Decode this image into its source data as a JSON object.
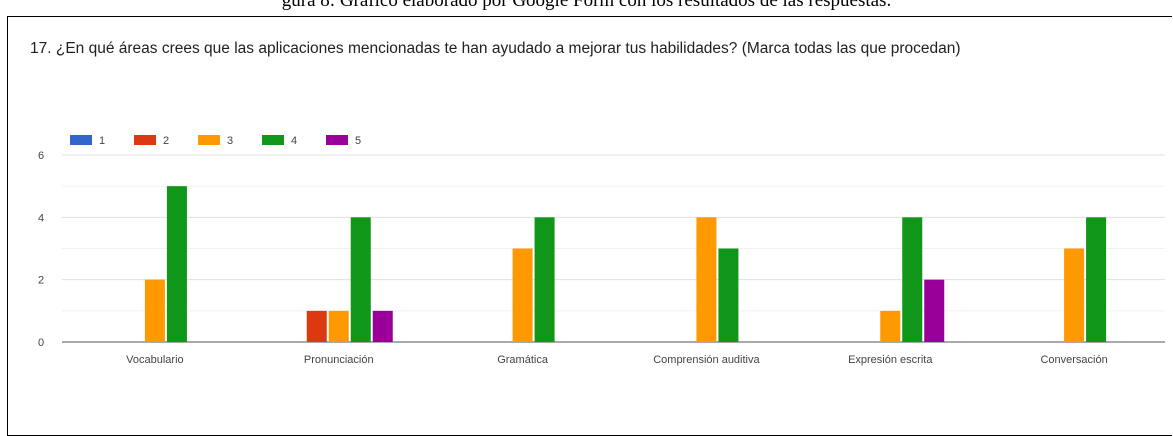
{
  "caption": {
    "prefix": "gura 8: Gráfico elaborado por Google Form con los resultados de las respuestas."
  },
  "question": "17. ¿En qué áreas crees que las aplicaciones mencionadas te han ayudado a mejorar tus habilidades? (Marca todas las que procedan)",
  "chart_data": {
    "type": "bar",
    "title": "",
    "xlabel": "",
    "ylabel": "",
    "ylim": [
      0,
      6
    ],
    "yticks": [
      0,
      2,
      4,
      6
    ],
    "grid": true,
    "legend_position": "top-left",
    "categories": [
      "Vocabulario",
      "Pronunciación",
      "Gramática",
      "Comprensión auditiva",
      "Expresión escrita",
      "Conversación"
    ],
    "series": [
      {
        "name": "1",
        "color": "#3366cc",
        "values": [
          0,
          0,
          0,
          0,
          0,
          0
        ]
      },
      {
        "name": "2",
        "color": "#dc3912",
        "values": [
          0,
          1,
          0,
          0,
          0,
          0
        ]
      },
      {
        "name": "3",
        "color": "#ff9900",
        "values": [
          2,
          1,
          3,
          4,
          1,
          3
        ]
      },
      {
        "name": "4",
        "color": "#109618",
        "values": [
          5,
          4,
          4,
          3,
          4,
          4
        ]
      },
      {
        "name": "5",
        "color": "#990099",
        "values": [
          0,
          1,
          0,
          0,
          2,
          0
        ]
      }
    ]
  }
}
